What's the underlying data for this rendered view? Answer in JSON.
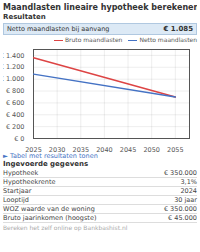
{
  "chart_data": {
    "type": "line",
    "title": "Maandlasten lineaire hypotheek berekenen",
    "subtitle": "Resultaten",
    "x": [
      2025,
      2055
    ],
    "series": [
      {
        "name": "Bruto maandlasten",
        "color": "#dd4444",
        "values": [
          1360,
          700
        ]
      },
      {
        "name": "Netto maandlasten",
        "color": "#4472c4",
        "values": [
          1085,
          700
        ]
      }
    ],
    "xlim": [
      2025,
      2058
    ],
    "xticks": [
      2025,
      2030,
      2035,
      2040,
      2045,
      2050,
      2055
    ],
    "ylim": [
      0,
      1500
    ],
    "yticks": [
      {
        "value": 0,
        "label": "€ 0"
      },
      {
        "value": 200,
        "label": "€ 200"
      },
      {
        "value": 400,
        "label": "€ 400"
      },
      {
        "value": 600,
        "label": "€ 600"
      },
      {
        "value": 800,
        "label": "€ 800"
      },
      {
        "value": 1000,
        "label": "€ 1.000"
      },
      {
        "value": 1200,
        "label": "€ 1.200"
      },
      {
        "value": 1400,
        "label": "€ 1.400"
      }
    ],
    "grid": true,
    "legend": "upper right",
    "annotations": [
      [
        "Netto maandlasten bij aanvang",
        "€ 1.085"
      ],
      "► Tabel met resultaten tonen",
      "Ingevoerde gegevens",
      [
        "Hypotheek",
        "€ 350.000"
      ],
      [
        "Hypotheekrente",
        "3,1%"
      ],
      [
        "Startjaar",
        "2024"
      ],
      [
        "Looptijd",
        "30 jaar"
      ],
      [
        "WOZ waarde van de woning",
        "€ 350.000"
      ],
      [
        "Bruto jaarinkomen (hoogste)",
        "€ 45.000"
      ],
      "Bereken het zelf online op Bankbashist.nl"
    ]
  }
}
